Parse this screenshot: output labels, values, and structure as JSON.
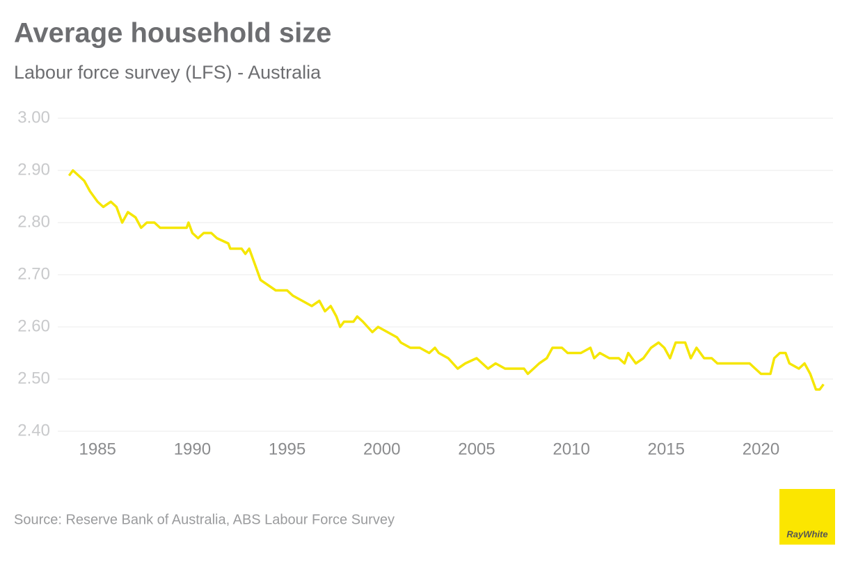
{
  "chart_data": {
    "type": "line",
    "title": "Average household size",
    "subtitle": "Labour force survey (LFS) - Australia",
    "source": "Source: Reserve Bank of Australia, ABS Labour Force Survey",
    "logo": "RayWhite",
    "xlim": [
      1982.9,
      2023.8
    ],
    "xticks": [
      1985,
      1990,
      1995,
      2000,
      2005,
      2010,
      2015,
      2020
    ],
    "ylim": [
      2.4,
      3.0
    ],
    "yticks": [
      {
        "value": 2.4,
        "label": "2.40"
      },
      {
        "value": 2.5,
        "label": "2.50"
      },
      {
        "value": 2.6,
        "label": "2.60"
      },
      {
        "value": 2.7,
        "label": "2.70"
      },
      {
        "value": 2.8,
        "label": "2.80"
      },
      {
        "value": 2.9,
        "label": "2.90"
      },
      {
        "value": 3.0,
        "label": "3.00"
      }
    ],
    "grid": true,
    "series": [
      {
        "color": "#f5e600",
        "x": [
          1983.5,
          1983.7,
          1984.0,
          1984.3,
          1984.6,
          1985.0,
          1985.3,
          1985.7,
          1986.0,
          1986.3,
          1986.6,
          1987.0,
          1987.3,
          1987.6,
          1988.0,
          1988.3,
          1989.0,
          1989.7,
          1989.8,
          1990.0,
          1990.3,
          1990.6,
          1991.0,
          1991.3,
          1991.9,
          1992.0,
          1992.6,
          1992.8,
          1993.0,
          1993.3,
          1993.6,
          1994.0,
          1994.4,
          1995.0,
          1995.3,
          1995.8,
          1996.3,
          1996.7,
          1997.0,
          1997.3,
          1997.6,
          1997.8,
          1998.0,
          1998.5,
          1998.7,
          1999.0,
          1999.5,
          1999.8,
          2000.3,
          2000.8,
          2001.0,
          2001.5,
          2002.0,
          2002.5,
          2002.8,
          2003.0,
          2003.5,
          2004.0,
          2004.4,
          2005.0,
          2005.3,
          2005.6,
          2006.0,
          2006.5,
          2007.0,
          2007.5,
          2007.7,
          2008.0,
          2008.3,
          2008.7,
          2009.0,
          2009.5,
          2009.8,
          2010.2,
          2010.5,
          2011.0,
          2011.2,
          2011.5,
          2012.0,
          2012.5,
          2012.8,
          2013.0,
          2013.4,
          2013.8,
          2014.2,
          2014.6,
          2014.9,
          2015.2,
          2015.5,
          2016.0,
          2016.3,
          2016.6,
          2017.0,
          2017.4,
          2017.7,
          2018.0,
          2018.5,
          2019.0,
          2019.4,
          2019.7,
          2020.0,
          2020.5,
          2020.7,
          2021.0,
          2021.3,
          2021.5,
          2022.0,
          2022.3,
          2022.6,
          2022.9,
          2023.1,
          2023.3
        ],
        "values": [
          2.89,
          2.9,
          2.89,
          2.88,
          2.86,
          2.84,
          2.83,
          2.84,
          2.83,
          2.8,
          2.82,
          2.81,
          2.79,
          2.8,
          2.8,
          2.79,
          2.79,
          2.79,
          2.8,
          2.78,
          2.77,
          2.78,
          2.78,
          2.77,
          2.76,
          2.75,
          2.75,
          2.74,
          2.75,
          2.72,
          2.69,
          2.68,
          2.67,
          2.67,
          2.66,
          2.65,
          2.64,
          2.65,
          2.63,
          2.64,
          2.62,
          2.6,
          2.61,
          2.61,
          2.62,
          2.61,
          2.59,
          2.6,
          2.59,
          2.58,
          2.57,
          2.56,
          2.56,
          2.55,
          2.56,
          2.55,
          2.54,
          2.52,
          2.53,
          2.54,
          2.53,
          2.52,
          2.53,
          2.52,
          2.52,
          2.52,
          2.51,
          2.52,
          2.53,
          2.54,
          2.56,
          2.56,
          2.55,
          2.55,
          2.55,
          2.56,
          2.54,
          2.55,
          2.54,
          2.54,
          2.53,
          2.55,
          2.53,
          2.54,
          2.56,
          2.57,
          2.56,
          2.54,
          2.57,
          2.57,
          2.54,
          2.56,
          2.54,
          2.54,
          2.53,
          2.53,
          2.53,
          2.53,
          2.53,
          2.52,
          2.51,
          2.51,
          2.54,
          2.55,
          2.55,
          2.53,
          2.52,
          2.53,
          2.51,
          2.48,
          2.48,
          2.49
        ]
      }
    ]
  }
}
